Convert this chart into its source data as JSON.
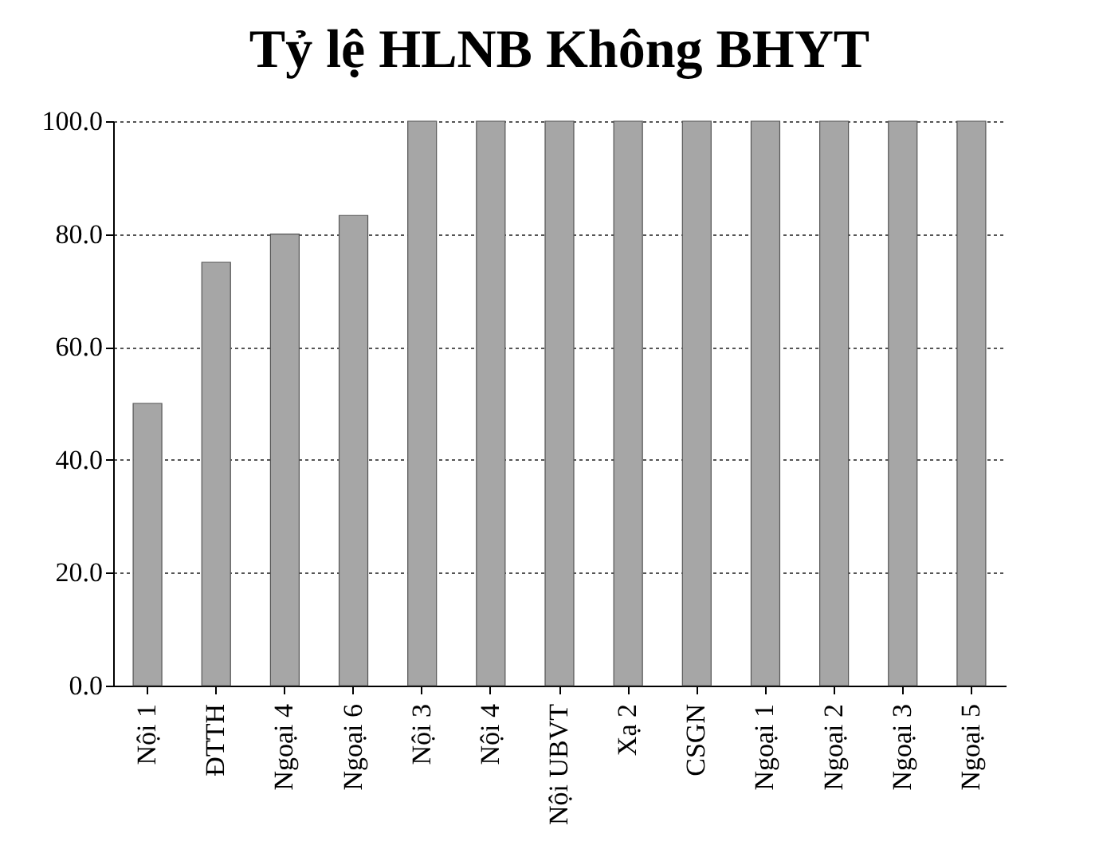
{
  "chart_data": {
    "type": "bar",
    "title": "Tỷ lệ HLNB Không BHYT",
    "categories": [
      "Nội 1",
      "ĐTTH",
      "Ngoại 4",
      "Ngoại 6",
      "Nội 3",
      "Nội 4",
      "Nội UBVT",
      "Xạ 2",
      "CSGN",
      "Ngoại 1",
      "Ngoại 2",
      "Ngoại 3",
      "Ngoại 5"
    ],
    "values": [
      50,
      75,
      80,
      83.3,
      100,
      100,
      100,
      100,
      100,
      100,
      100,
      100,
      100
    ],
    "color": "#a6a6a6",
    "ylim": [
      0,
      100
    ],
    "yticks": [
      {
        "value": 0,
        "label": "0.0"
      },
      {
        "value": 20,
        "label": "20.0"
      },
      {
        "value": 40,
        "label": "40.0"
      },
      {
        "value": 60,
        "label": "60.0"
      },
      {
        "value": 80,
        "label": "80.0"
      },
      {
        "value": 100,
        "label": "100.0"
      }
    ],
    "grid": "y"
  }
}
